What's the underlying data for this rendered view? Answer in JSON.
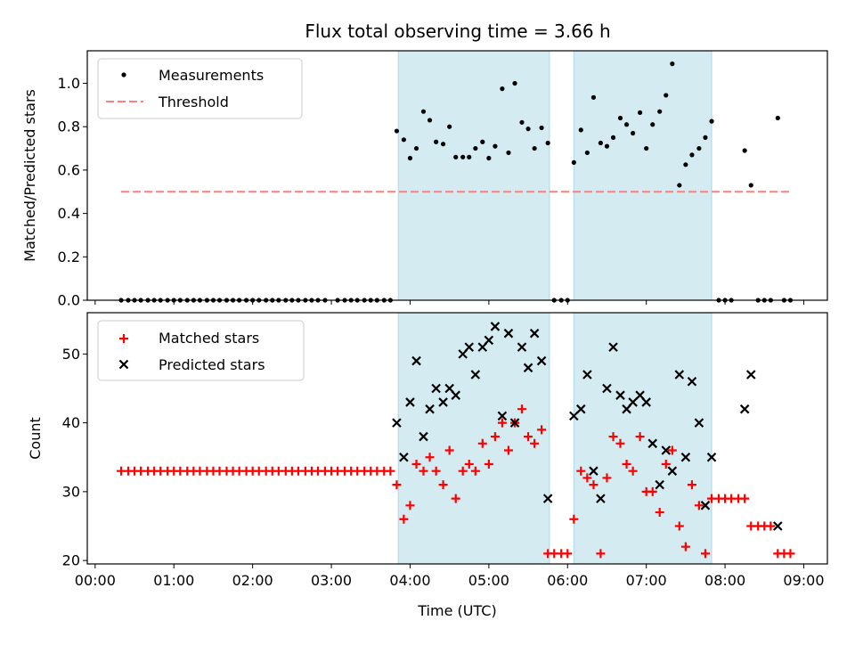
{
  "chart_data": {
    "type": "scatter",
    "title": "Flux total observing time = 3.66 h",
    "xlabel": "Time (UTC)",
    "x_tick_labels": [
      "00:00",
      "01:00",
      "02:00",
      "03:00",
      "04:00",
      "05:00",
      "06:00",
      "07:00",
      "08:00",
      "09:00"
    ],
    "x_tick_hours": [
      0,
      1,
      2,
      3,
      4,
      5,
      6,
      7,
      8,
      9
    ],
    "xlim_hours": [
      -0.1,
      9.3
    ],
    "shaded_intervals_hours": [
      [
        3.85,
        5.77
      ],
      [
        6.08,
        7.83
      ]
    ],
    "colors": {
      "measurements": "#000000",
      "threshold": "#ff7f7f",
      "matched": "#ff0000",
      "predicted": "#000000",
      "shade": "#add8e6"
    },
    "top_panel": {
      "ylabel": "Matched/Predicted stars",
      "ylim": [
        0,
        1.15
      ],
      "y_ticks": [
        0.0,
        0.2,
        0.4,
        0.6,
        0.8,
        1.0
      ],
      "y_tick_labels": [
        "0.0",
        "0.2",
        "0.4",
        "0.6",
        "0.8",
        "1.0"
      ],
      "legend": {
        "placement": "upper left",
        "entries": [
          "Measurements",
          "Threshold"
        ]
      },
      "threshold": {
        "value": 0.5,
        "x_range_hours": [
          0.33,
          8.83
        ]
      },
      "measurements": [
        {
          "t": 0.33,
          "v": 0
        },
        {
          "t": 0.42,
          "v": 0
        },
        {
          "t": 0.5,
          "v": 0
        },
        {
          "t": 0.58,
          "v": 0
        },
        {
          "t": 0.67,
          "v": 0
        },
        {
          "t": 0.75,
          "v": 0
        },
        {
          "t": 0.83,
          "v": 0
        },
        {
          "t": 0.92,
          "v": 0
        },
        {
          "t": 1.0,
          "v": 0
        },
        {
          "t": 1.08,
          "v": 0
        },
        {
          "t": 1.17,
          "v": 0
        },
        {
          "t": 1.25,
          "v": 0
        },
        {
          "t": 1.33,
          "v": 0
        },
        {
          "t": 1.42,
          "v": 0
        },
        {
          "t": 1.5,
          "v": 0
        },
        {
          "t": 1.58,
          "v": 0
        },
        {
          "t": 1.67,
          "v": 0
        },
        {
          "t": 1.75,
          "v": 0
        },
        {
          "t": 1.83,
          "v": 0
        },
        {
          "t": 1.92,
          "v": 0
        },
        {
          "t": 2.0,
          "v": 0
        },
        {
          "t": 2.08,
          "v": 0
        },
        {
          "t": 2.17,
          "v": 0
        },
        {
          "t": 2.25,
          "v": 0
        },
        {
          "t": 2.33,
          "v": 0
        },
        {
          "t": 2.42,
          "v": 0
        },
        {
          "t": 2.5,
          "v": 0
        },
        {
          "t": 2.58,
          "v": 0
        },
        {
          "t": 2.67,
          "v": 0
        },
        {
          "t": 2.75,
          "v": 0
        },
        {
          "t": 2.83,
          "v": 0
        },
        {
          "t": 2.92,
          "v": 0
        },
        {
          "t": 3.08,
          "v": 0
        },
        {
          "t": 3.17,
          "v": 0
        },
        {
          "t": 3.25,
          "v": 0
        },
        {
          "t": 3.33,
          "v": 0
        },
        {
          "t": 3.42,
          "v": 0
        },
        {
          "t": 3.5,
          "v": 0
        },
        {
          "t": 3.58,
          "v": 0
        },
        {
          "t": 3.67,
          "v": 0
        },
        {
          "t": 3.75,
          "v": 0
        },
        {
          "t": 3.83,
          "v": 0.78
        },
        {
          "t": 3.92,
          "v": 0.74
        },
        {
          "t": 4.0,
          "v": 0.655
        },
        {
          "t": 4.08,
          "v": 0.7
        },
        {
          "t": 4.17,
          "v": 0.87
        },
        {
          "t": 4.25,
          "v": 0.83
        },
        {
          "t": 4.33,
          "v": 0.73
        },
        {
          "t": 4.42,
          "v": 0.72
        },
        {
          "t": 4.5,
          "v": 0.8
        },
        {
          "t": 4.58,
          "v": 0.66
        },
        {
          "t": 4.67,
          "v": 0.66
        },
        {
          "t": 4.75,
          "v": 0.66
        },
        {
          "t": 4.83,
          "v": 0.7
        },
        {
          "t": 4.92,
          "v": 0.73
        },
        {
          "t": 5.0,
          "v": 0.655
        },
        {
          "t": 5.08,
          "v": 0.71
        },
        {
          "t": 5.17,
          "v": 0.975
        },
        {
          "t": 5.25,
          "v": 0.68
        },
        {
          "t": 5.33,
          "v": 1.0
        },
        {
          "t": 5.42,
          "v": 0.82
        },
        {
          "t": 5.5,
          "v": 0.79
        },
        {
          "t": 5.58,
          "v": 0.7
        },
        {
          "t": 5.67,
          "v": 0.795
        },
        {
          "t": 5.75,
          "v": 0.725
        },
        {
          "t": 5.83,
          "v": 0
        },
        {
          "t": 5.92,
          "v": 0
        },
        {
          "t": 6.0,
          "v": 0
        },
        {
          "t": 6.08,
          "v": 0.635
        },
        {
          "t": 6.17,
          "v": 0.785
        },
        {
          "t": 6.25,
          "v": 0.68
        },
        {
          "t": 6.33,
          "v": 0.935
        },
        {
          "t": 6.42,
          "v": 0.725
        },
        {
          "t": 6.5,
          "v": 0.71
        },
        {
          "t": 6.58,
          "v": 0.75
        },
        {
          "t": 6.67,
          "v": 0.84
        },
        {
          "t": 6.75,
          "v": 0.81
        },
        {
          "t": 6.83,
          "v": 0.77
        },
        {
          "t": 6.92,
          "v": 0.865
        },
        {
          "t": 7.0,
          "v": 0.7
        },
        {
          "t": 7.08,
          "v": 0.81
        },
        {
          "t": 7.17,
          "v": 0.87
        },
        {
          "t": 7.25,
          "v": 0.945
        },
        {
          "t": 7.33,
          "v": 1.09
        },
        {
          "t": 7.42,
          "v": 0.53
        },
        {
          "t": 7.5,
          "v": 0.625
        },
        {
          "t": 7.58,
          "v": 0.67
        },
        {
          "t": 7.67,
          "v": 0.7
        },
        {
          "t": 7.75,
          "v": 0.75
        },
        {
          "t": 7.83,
          "v": 0.825
        },
        {
          "t": 7.92,
          "v": 0
        },
        {
          "t": 8.0,
          "v": 0
        },
        {
          "t": 8.08,
          "v": 0
        },
        {
          "t": 8.25,
          "v": 0.69
        },
        {
          "t": 8.33,
          "v": 0.53
        },
        {
          "t": 8.42,
          "v": 0
        },
        {
          "t": 8.5,
          "v": 0
        },
        {
          "t": 8.58,
          "v": 0
        },
        {
          "t": 8.67,
          "v": 0.84
        },
        {
          "t": 8.75,
          "v": 0
        },
        {
          "t": 8.83,
          "v": 0
        }
      ]
    },
    "bottom_panel": {
      "ylabel": "Count",
      "ylim": [
        19.5,
        56
      ],
      "y_ticks": [
        20,
        30,
        40,
        50
      ],
      "y_tick_labels": [
        "20",
        "30",
        "40",
        "50"
      ],
      "legend": {
        "placement": "upper left",
        "entries": [
          "Matched stars",
          "Predicted stars"
        ]
      },
      "matched": [
        {
          "t": 0.33,
          "v": 33
        },
        {
          "t": 0.42,
          "v": 33
        },
        {
          "t": 0.5,
          "v": 33
        },
        {
          "t": 0.58,
          "v": 33
        },
        {
          "t": 0.67,
          "v": 33
        },
        {
          "t": 0.75,
          "v": 33
        },
        {
          "t": 0.83,
          "v": 33
        },
        {
          "t": 0.92,
          "v": 33
        },
        {
          "t": 1.0,
          "v": 33
        },
        {
          "t": 1.08,
          "v": 33
        },
        {
          "t": 1.17,
          "v": 33
        },
        {
          "t": 1.25,
          "v": 33
        },
        {
          "t": 1.33,
          "v": 33
        },
        {
          "t": 1.42,
          "v": 33
        },
        {
          "t": 1.5,
          "v": 33
        },
        {
          "t": 1.58,
          "v": 33
        },
        {
          "t": 1.67,
          "v": 33
        },
        {
          "t": 1.75,
          "v": 33
        },
        {
          "t": 1.83,
          "v": 33
        },
        {
          "t": 1.92,
          "v": 33
        },
        {
          "t": 2.0,
          "v": 33
        },
        {
          "t": 2.08,
          "v": 33
        },
        {
          "t": 2.17,
          "v": 33
        },
        {
          "t": 2.25,
          "v": 33
        },
        {
          "t": 2.33,
          "v": 33
        },
        {
          "t": 2.42,
          "v": 33
        },
        {
          "t": 2.5,
          "v": 33
        },
        {
          "t": 2.58,
          "v": 33
        },
        {
          "t": 2.67,
          "v": 33
        },
        {
          "t": 2.75,
          "v": 33
        },
        {
          "t": 2.83,
          "v": 33
        },
        {
          "t": 2.92,
          "v": 33
        },
        {
          "t": 3.0,
          "v": 33
        },
        {
          "t": 3.08,
          "v": 33
        },
        {
          "t": 3.17,
          "v": 33
        },
        {
          "t": 3.25,
          "v": 33
        },
        {
          "t": 3.33,
          "v": 33
        },
        {
          "t": 3.42,
          "v": 33
        },
        {
          "t": 3.5,
          "v": 33
        },
        {
          "t": 3.58,
          "v": 33
        },
        {
          "t": 3.67,
          "v": 33
        },
        {
          "t": 3.75,
          "v": 33
        },
        {
          "t": 3.83,
          "v": 31
        },
        {
          "t": 3.92,
          "v": 26
        },
        {
          "t": 4.0,
          "v": 28
        },
        {
          "t": 4.08,
          "v": 34
        },
        {
          "t": 4.17,
          "v": 33
        },
        {
          "t": 4.25,
          "v": 35
        },
        {
          "t": 4.33,
          "v": 33
        },
        {
          "t": 4.42,
          "v": 31
        },
        {
          "t": 4.5,
          "v": 36
        },
        {
          "t": 4.58,
          "v": 29
        },
        {
          "t": 4.67,
          "v": 33
        },
        {
          "t": 4.75,
          "v": 34
        },
        {
          "t": 4.83,
          "v": 33
        },
        {
          "t": 4.92,
          "v": 37
        },
        {
          "t": 5.0,
          "v": 34
        },
        {
          "t": 5.08,
          "v": 38
        },
        {
          "t": 5.17,
          "v": 40
        },
        {
          "t": 5.25,
          "v": 36
        },
        {
          "t": 5.33,
          "v": 40
        },
        {
          "t": 5.42,
          "v": 42
        },
        {
          "t": 5.5,
          "v": 38
        },
        {
          "t": 5.58,
          "v": 37
        },
        {
          "t": 5.67,
          "v": 39
        },
        {
          "t": 5.75,
          "v": 21
        },
        {
          "t": 5.83,
          "v": 21
        },
        {
          "t": 5.92,
          "v": 21
        },
        {
          "t": 6.0,
          "v": 21
        },
        {
          "t": 6.08,
          "v": 26
        },
        {
          "t": 6.17,
          "v": 33
        },
        {
          "t": 6.25,
          "v": 32
        },
        {
          "t": 6.33,
          "v": 31
        },
        {
          "t": 6.42,
          "v": 21
        },
        {
          "t": 6.5,
          "v": 32
        },
        {
          "t": 6.58,
          "v": 38
        },
        {
          "t": 6.67,
          "v": 37
        },
        {
          "t": 6.75,
          "v": 34
        },
        {
          "t": 6.83,
          "v": 33
        },
        {
          "t": 6.92,
          "v": 38
        },
        {
          "t": 7.0,
          "v": 30
        },
        {
          "t": 7.08,
          "v": 30
        },
        {
          "t": 7.17,
          "v": 27
        },
        {
          "t": 7.25,
          "v": 34
        },
        {
          "t": 7.33,
          "v": 36
        },
        {
          "t": 7.42,
          "v": 25
        },
        {
          "t": 7.5,
          "v": 22
        },
        {
          "t": 7.58,
          "v": 31
        },
        {
          "t": 7.67,
          "v": 28
        },
        {
          "t": 7.75,
          "v": 21
        },
        {
          "t": 7.83,
          "v": 29
        },
        {
          "t": 7.92,
          "v": 29
        },
        {
          "t": 8.0,
          "v": 29
        },
        {
          "t": 8.08,
          "v": 29
        },
        {
          "t": 8.17,
          "v": 29
        },
        {
          "t": 8.25,
          "v": 29
        },
        {
          "t": 8.33,
          "v": 25
        },
        {
          "t": 8.42,
          "v": 25
        },
        {
          "t": 8.5,
          "v": 25
        },
        {
          "t": 8.58,
          "v": 25
        },
        {
          "t": 8.67,
          "v": 21
        },
        {
          "t": 8.75,
          "v": 21
        },
        {
          "t": 8.83,
          "v": 21
        }
      ],
      "predicted": [
        {
          "t": 3.83,
          "v": 40
        },
        {
          "t": 3.92,
          "v": 35
        },
        {
          "t": 4.0,
          "v": 43
        },
        {
          "t": 4.08,
          "v": 49
        },
        {
          "t": 4.17,
          "v": 38
        },
        {
          "t": 4.25,
          "v": 42
        },
        {
          "t": 4.33,
          "v": 45
        },
        {
          "t": 4.42,
          "v": 43
        },
        {
          "t": 4.5,
          "v": 45
        },
        {
          "t": 4.58,
          "v": 44
        },
        {
          "t": 4.67,
          "v": 50
        },
        {
          "t": 4.75,
          "v": 51
        },
        {
          "t": 4.83,
          "v": 47
        },
        {
          "t": 4.92,
          "v": 51
        },
        {
          "t": 5.0,
          "v": 52
        },
        {
          "t": 5.08,
          "v": 54
        },
        {
          "t": 5.17,
          "v": 41
        },
        {
          "t": 5.25,
          "v": 53
        },
        {
          "t": 5.33,
          "v": 40
        },
        {
          "t": 5.42,
          "v": 51
        },
        {
          "t": 5.5,
          "v": 48
        },
        {
          "t": 5.58,
          "v": 53
        },
        {
          "t": 5.67,
          "v": 49
        },
        {
          "t": 5.75,
          "v": 29
        },
        {
          "t": 6.08,
          "v": 41
        },
        {
          "t": 6.17,
          "v": 42
        },
        {
          "t": 6.25,
          "v": 47
        },
        {
          "t": 6.33,
          "v": 33
        },
        {
          "t": 6.42,
          "v": 29
        },
        {
          "t": 6.5,
          "v": 45
        },
        {
          "t": 6.58,
          "v": 51
        },
        {
          "t": 6.67,
          "v": 44
        },
        {
          "t": 6.75,
          "v": 42
        },
        {
          "t": 6.83,
          "v": 43
        },
        {
          "t": 6.92,
          "v": 44
        },
        {
          "t": 7.0,
          "v": 43
        },
        {
          "t": 7.08,
          "v": 37
        },
        {
          "t": 7.17,
          "v": 31
        },
        {
          "t": 7.25,
          "v": 36
        },
        {
          "t": 7.33,
          "v": 33
        },
        {
          "t": 7.42,
          "v": 47
        },
        {
          "t": 7.5,
          "v": 35
        },
        {
          "t": 7.58,
          "v": 46
        },
        {
          "t": 7.67,
          "v": 40
        },
        {
          "t": 7.75,
          "v": 28
        },
        {
          "t": 7.83,
          "v": 35
        },
        {
          "t": 8.25,
          "v": 42
        },
        {
          "t": 8.33,
          "v": 47
        },
        {
          "t": 8.67,
          "v": 25
        }
      ]
    }
  }
}
